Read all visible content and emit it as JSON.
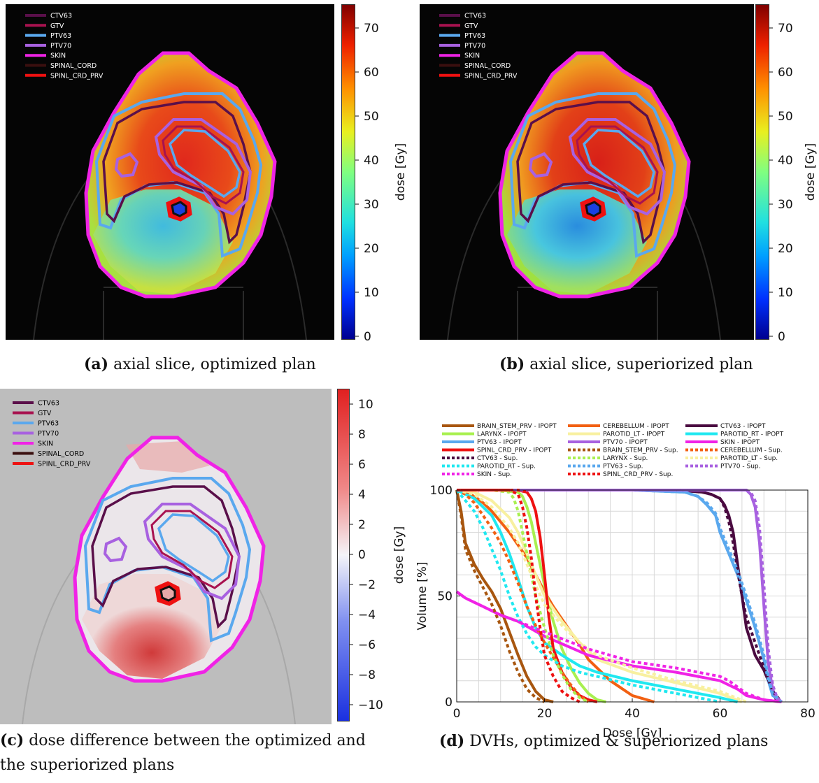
{
  "colors": {
    "CTV63": "#5a0f4a",
    "GTV": "#a8124f",
    "PTV63": "#5aa8ee",
    "PTV70": "#a861e0",
    "SKIN": "#f023e6",
    "SPINAL_CORD": "#3a0f0f",
    "SPINL_CRD_PRV": "#ee1111"
  },
  "structures": [
    "CTV63",
    "GTV",
    "PTV63",
    "PTV70",
    "SKIN",
    "SPINAL_CORD",
    "SPINL_CRD_PRV"
  ],
  "panel_a": {
    "caption_label": "(a)",
    "caption_text": " axial slice, optimized plan",
    "colorbar_label": "dose [Gy]",
    "colorbar_ticks": [
      "0",
      "10",
      "20",
      "30",
      "40",
      "50",
      "60",
      "70"
    ]
  },
  "panel_b": {
    "caption_label": "(b)",
    "caption_text": " axial slice, superiorized plan",
    "colorbar_label": "dose [Gy]",
    "colorbar_ticks": [
      "0",
      "10",
      "20",
      "30",
      "40",
      "50",
      "60",
      "70"
    ]
  },
  "panel_c": {
    "caption_label": "(c)",
    "caption_text_line1": " dose difference between the optimized and",
    "caption_text_line2": "the superiorized plans",
    "colorbar_label": "dose [Gy]",
    "colorbar_ticks": [
      "−10",
      "−8",
      "−6",
      "−4",
      "−2",
      "0",
      "2",
      "4",
      "6",
      "8",
      "10"
    ]
  },
  "panel_d": {
    "caption_label": "(d)",
    "caption_text": " DVHs, optimized & superiorized plans"
  },
  "chart_data": {
    "type": "line",
    "xlabel": "Dose [Gy]",
    "ylabel": "Volume [%]",
    "xlim": [
      0,
      80
    ],
    "ylim": [
      0,
      100
    ],
    "xticks": [
      "0",
      "20",
      "40",
      "60",
      "80"
    ],
    "yticks": [
      "0",
      "50",
      "100"
    ],
    "grid": true,
    "legend_position": "top",
    "series": [
      {
        "name": "BRAIN_STEM_PRV - IPOPT",
        "color": "#a8560f",
        "dash": false,
        "x": [
          0,
          1,
          2,
          4,
          6,
          8,
          10,
          12,
          14,
          16,
          18,
          20,
          22
        ],
        "y": [
          100,
          90,
          75,
          65,
          58,
          52,
          44,
          33,
          22,
          12,
          5,
          1,
          0
        ]
      },
      {
        "name": "CEREBELLUM - IPOPT",
        "color": "#f26012",
        "dash": false,
        "x": [
          0,
          2,
          4,
          6,
          8,
          10,
          12,
          14,
          16,
          18,
          20,
          22,
          24,
          26,
          28,
          30,
          35,
          40,
          45
        ],
        "y": [
          100,
          99,
          97,
          94,
          90,
          85,
          80,
          74,
          68,
          60,
          52,
          45,
          39,
          33,
          27,
          20,
          10,
          3,
          0
        ]
      },
      {
        "name": "CTV63 - IPOPT",
        "color": "#4a0a40",
        "dash": false,
        "x": [
          0,
          50,
          56,
          58,
          60,
          61,
          62,
          63,
          64,
          65,
          66,
          68,
          70,
          72,
          73
        ],
        "y": [
          100,
          100,
          99,
          98,
          96,
          93,
          88,
          80,
          65,
          50,
          35,
          22,
          15,
          5,
          0
        ]
      },
      {
        "name": "LARYNX - IPOPT",
        "color": "#a8f050",
        "dash": false,
        "x": [
          0,
          10,
          14,
          15,
          16,
          17,
          18,
          20,
          22,
          24,
          26,
          28,
          30,
          32,
          34
        ],
        "y": [
          100,
          100,
          99,
          97,
          92,
          85,
          75,
          55,
          38,
          25,
          16,
          9,
          4,
          1,
          0
        ]
      },
      {
        "name": "PAROTID_LT - IPOPT",
        "color": "#f8f0a0",
        "dash": false,
        "x": [
          0,
          4,
          8,
          12,
          14,
          16,
          18,
          20,
          24,
          28,
          32,
          40,
          50,
          60,
          65
        ],
        "y": [
          100,
          99,
          95,
          87,
          80,
          70,
          60,
          50,
          38,
          28,
          20,
          14,
          9,
          4,
          0
        ]
      },
      {
        "name": "PAROTID_RT - IPOPT",
        "color": "#20e8f0",
        "dash": false,
        "x": [
          0,
          4,
          8,
          10,
          12,
          14,
          16,
          18,
          20,
          24,
          28,
          32,
          40,
          50,
          60,
          64
        ],
        "y": [
          100,
          96,
          88,
          80,
          70,
          58,
          45,
          35,
          28,
          22,
          17,
          14,
          10,
          6,
          2,
          0
        ]
      },
      {
        "name": "PTV63 - IPOPT",
        "color": "#5aa8ee",
        "dash": false,
        "x": [
          0,
          40,
          52,
          55,
          57,
          59,
          60,
          62,
          64,
          66,
          68,
          70,
          71,
          72,
          74
        ],
        "y": [
          100,
          100,
          99,
          97,
          93,
          88,
          80,
          70,
          60,
          48,
          35,
          20,
          10,
          3,
          0
        ]
      },
      {
        "name": "PTV70 - IPOPT",
        "color": "#a861e0",
        "dash": false,
        "x": [
          0,
          60,
          66,
          67,
          68,
          69,
          70,
          71,
          72,
          73,
          74
        ],
        "y": [
          100,
          100,
          100,
          98,
          92,
          75,
          45,
          18,
          6,
          1,
          0
        ]
      },
      {
        "name": "SKIN - IPOPT",
        "color": "#f023e6",
        "dash": false,
        "x": [
          0,
          2,
          4,
          6,
          8,
          10,
          14,
          20,
          30,
          40,
          50,
          55,
          60,
          62,
          64,
          66,
          70,
          74
        ],
        "y": [
          52,
          49,
          47,
          45,
          43,
          41,
          38,
          31,
          22,
          17,
          14,
          12,
          10,
          8,
          6,
          3,
          1,
          0
        ]
      },
      {
        "name": "SPINL_CRD_PRV - IPOPT",
        "color": "#ee1111",
        "dash": false,
        "x": [
          0,
          14,
          16,
          17,
          18,
          19,
          20,
          21,
          22,
          24,
          26,
          28,
          30,
          32
        ],
        "y": [
          100,
          100,
          99,
          96,
          90,
          78,
          60,
          40,
          25,
          14,
          7,
          3,
          1,
          0
        ]
      },
      {
        "name": "BRAIN_STEM_PRV - Sup.",
        "color": "#a8560f",
        "dash": true,
        "x": [
          0,
          1,
          2,
          4,
          6,
          8,
          10,
          12,
          14,
          16,
          18,
          20
        ],
        "y": [
          100,
          88,
          72,
          62,
          54,
          46,
          36,
          24,
          14,
          6,
          2,
          0
        ]
      },
      {
        "name": "CEREBELLUM - Sup.",
        "color": "#f26012",
        "dash": true,
        "x": [
          0,
          2,
          4,
          6,
          8,
          10,
          12,
          14,
          16,
          18,
          20,
          22,
          24,
          26,
          28,
          30
        ],
        "y": [
          100,
          98,
          94,
          88,
          82,
          75,
          66,
          56,
          45,
          36,
          28,
          21,
          14,
          8,
          3,
          0
        ]
      },
      {
        "name": "CTV63 - Sup.",
        "color": "#4a0a40",
        "dash": true,
        "x": [
          0,
          50,
          56,
          58,
          60,
          61,
          62,
          63,
          64,
          65,
          66,
          68,
          70,
          72,
          74
        ],
        "y": [
          100,
          100,
          99,
          98,
          96,
          92,
          85,
          75,
          62,
          50,
          40,
          28,
          16,
          5,
          0
        ]
      },
      {
        "name": "LARYNX - Sup.",
        "color": "#a8f050",
        "dash": true,
        "x": [
          0,
          8,
          12,
          13,
          14,
          15,
          16,
          18,
          20,
          22,
          24,
          26,
          28,
          30
        ],
        "y": [
          100,
          100,
          99,
          96,
          90,
          80,
          70,
          50,
          35,
          22,
          13,
          6,
          2,
          0
        ]
      },
      {
        "name": "PAROTID_LT - Sup.",
        "color": "#f8f0a0",
        "dash": true,
        "x": [
          0,
          4,
          8,
          12,
          14,
          16,
          18,
          20,
          24,
          28,
          32,
          40,
          50,
          60,
          66
        ],
        "y": [
          100,
          98,
          92,
          82,
          75,
          65,
          55,
          46,
          36,
          28,
          22,
          16,
          10,
          5,
          0
        ]
      },
      {
        "name": "PAROTID_RT - Sup.",
        "color": "#20e8f0",
        "dash": true,
        "x": [
          0,
          4,
          6,
          8,
          10,
          12,
          14,
          16,
          18,
          20,
          24,
          28,
          32,
          40,
          50,
          60
        ],
        "y": [
          100,
          90,
          82,
          72,
          62,
          50,
          40,
          32,
          26,
          22,
          17,
          14,
          12,
          8,
          4,
          0
        ]
      },
      {
        "name": "PTV63 - Sup.",
        "color": "#5aa8ee",
        "dash": true,
        "x": [
          0,
          40,
          52,
          55,
          57,
          59,
          60,
          62,
          64,
          66,
          68,
          70,
          71,
          72,
          74
        ],
        "y": [
          100,
          100,
          99,
          97,
          94,
          89,
          82,
          72,
          62,
          50,
          37,
          22,
          12,
          4,
          0
        ]
      },
      {
        "name": "PTV70 - Sup.",
        "color": "#a861e0",
        "dash": true,
        "x": [
          0,
          60,
          66,
          67,
          68,
          69,
          70,
          71,
          72,
          73,
          74
        ],
        "y": [
          100,
          100,
          100,
          99,
          95,
          82,
          55,
          25,
          8,
          2,
          0
        ]
      },
      {
        "name": "SKIN - Sup.",
        "color": "#f023e6",
        "dash": true,
        "x": [
          0,
          2,
          4,
          6,
          8,
          10,
          14,
          20,
          30,
          40,
          50,
          55,
          60,
          62,
          64,
          66,
          70,
          74
        ],
        "y": [
          52,
          49,
          47,
          45,
          43,
          41,
          38,
          33,
          25,
          19,
          16,
          14,
          12,
          10,
          7,
          4,
          1,
          0
        ]
      },
      {
        "name": "SPINL_CRD_PRV - Sup.",
        "color": "#ee1111",
        "dash": true,
        "x": [
          0,
          12,
          14,
          15,
          16,
          17,
          18,
          19,
          20,
          22,
          24,
          26,
          28
        ],
        "y": [
          100,
          100,
          98,
          92,
          82,
          68,
          50,
          35,
          22,
          12,
          5,
          2,
          0
        ]
      }
    ]
  }
}
